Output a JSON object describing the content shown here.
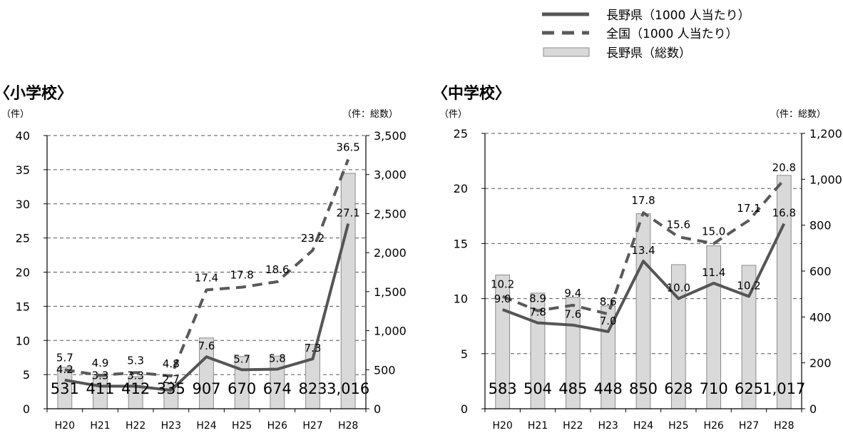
{
  "legend": {
    "items": [
      {
        "label": "長野県（1000 人当たり）",
        "style": "solid"
      },
      {
        "label": "全国（1000 人当たり）",
        "style": "dashed"
      },
      {
        "label": "長野県（総数）",
        "style": "bar"
      }
    ]
  },
  "colors": {
    "line_solid": "#555555",
    "line_dashed": "#595959",
    "bar_fill": "#d9d9d9",
    "bar_stroke": "#8c8c8c",
    "grid": "#555555"
  },
  "chart_data": [
    {
      "type": "bar",
      "title": "〈小学校〉",
      "left_unit": "（件）",
      "right_unit": "（件：総数）",
      "categories": [
        "H20",
        "H21",
        "H22",
        "H23",
        "H24",
        "H25",
        "H26",
        "H27",
        "H28"
      ],
      "ylim_left": [
        0,
        40
      ],
      "yticks_left": [
        0,
        5,
        10,
        15,
        20,
        25,
        30,
        35,
        40
      ],
      "ylim_right": [
        0,
        3500
      ],
      "yticks_right": [
        0,
        500,
        1000,
        1500,
        2000,
        2500,
        3000,
        3500
      ],
      "ytick_labels_right": [
        "0",
        "500",
        "1,000",
        "1,500",
        "2,000",
        "2,500",
        "3,000",
        "3,500"
      ],
      "grid": "dashed-horizontal",
      "series": [
        {
          "name": "長野県（総数）",
          "kind": "bar",
          "axis": "right",
          "values": [
            531,
            411,
            412,
            335,
            907,
            670,
            674,
            823,
            3016
          ],
          "labels": [
            "531",
            "411",
            "412",
            "335",
            "907",
            "670",
            "674",
            "823",
            "3,016"
          ]
        },
        {
          "name": "長野県（1000 人当たり）",
          "kind": "line-solid",
          "axis": "left",
          "values": [
            4.2,
            3.3,
            3.3,
            2.7,
            7.6,
            5.7,
            5.8,
            7.3,
            27.1
          ],
          "labels": [
            "4.2",
            "3.3",
            "3.3",
            "2.7",
            "7.6",
            "5.7",
            "5.8",
            "7.3",
            "27.1"
          ]
        },
        {
          "name": "全国（1000 人当たり）",
          "kind": "line-dashed",
          "axis": "left",
          "values": [
            5.7,
            4.9,
            5.3,
            4.8,
            17.4,
            17.8,
            18.6,
            23.2,
            36.5
          ],
          "labels": [
            "5.7",
            "4.9",
            "5.3",
            "4.8",
            "17.4",
            "17.8",
            "18.6",
            "23.2",
            "36.5"
          ]
        }
      ]
    },
    {
      "type": "bar",
      "title": "〈中学校〉",
      "left_unit": "（件）",
      "right_unit": "（件：総数）",
      "categories": [
        "H20",
        "H21",
        "H22",
        "H23",
        "H24",
        "H25",
        "H26",
        "H27",
        "H28"
      ],
      "ylim_left": [
        0,
        25
      ],
      "yticks_left": [
        0,
        5,
        10,
        15,
        20,
        25
      ],
      "ylim_right": [
        0,
        1200
      ],
      "yticks_right": [
        0,
        200,
        400,
        600,
        800,
        1000,
        1200
      ],
      "ytick_labels_right": [
        "0",
        "200",
        "400",
        "600",
        "800",
        "1,000",
        "1,200"
      ],
      "grid": "dashed-horizontal",
      "series": [
        {
          "name": "長野県（総数）",
          "kind": "bar",
          "axis": "right",
          "values": [
            583,
            504,
            485,
            448,
            850,
            628,
            710,
            625,
            1017
          ],
          "labels": [
            "583",
            "504",
            "485",
            "448",
            "850",
            "628",
            "710",
            "625",
            "1,017"
          ]
        },
        {
          "name": "長野県（1000 人当たり）",
          "kind": "line-solid",
          "axis": "left",
          "values": [
            9.0,
            7.8,
            7.6,
            7.0,
            13.4,
            10.0,
            11.4,
            10.2,
            16.8
          ],
          "labels": [
            "9.0",
            "7.8",
            "7.6",
            "7.0",
            "13.4",
            "10.0",
            "11.4",
            "10.2",
            "16.8"
          ]
        },
        {
          "name": "全国（1000 人当たり）",
          "kind": "line-dashed",
          "axis": "left",
          "values": [
            10.2,
            8.9,
            9.4,
            8.6,
            17.8,
            15.6,
            15.0,
            17.1,
            20.8
          ],
          "labels": [
            "10.2",
            "8.9",
            "9.4",
            "8.6",
            "17.8",
            "15.6",
            "15.0",
            "17.1",
            "20.8"
          ]
        }
      ]
    }
  ]
}
